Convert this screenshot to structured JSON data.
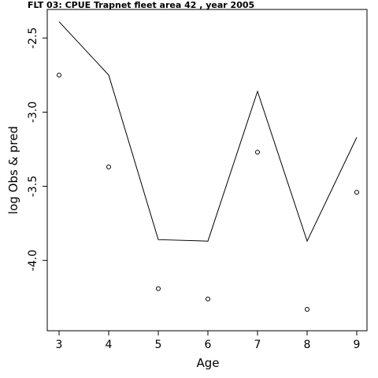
{
  "chart_data": {
    "type": "line",
    "title": "FLT 03:    CPUE       Trapnet   fleet        area        42            , year 2005",
    "xlabel": "Age",
    "ylabel": "log Obs & pred",
    "xlim": [
      3,
      9
    ],
    "ylim": [
      -4.4,
      -2.35
    ],
    "xticks": [
      3,
      4,
      5,
      6,
      7,
      8,
      9
    ],
    "yticks": [
      -4.0,
      -3.5,
      -3.0,
      -2.5
    ],
    "ytick_labels": [
      "-4.0",
      "-3.5",
      "-3.0",
      "-2.5"
    ],
    "grid": false,
    "series": [
      {
        "style": "line",
        "x": [
          3,
          4,
          5,
          6,
          7,
          8,
          9
        ],
        "values": [
          -2.39,
          -2.75,
          -3.86,
          -3.87,
          -2.86,
          -3.87,
          -3.17
        ]
      },
      {
        "style": "points",
        "x": [
          3,
          4,
          5,
          6,
          7,
          8,
          9
        ],
        "values": [
          -2.75,
          -3.37,
          -4.19,
          -4.26,
          -3.27,
          -4.33,
          -3.54
        ]
      }
    ]
  }
}
